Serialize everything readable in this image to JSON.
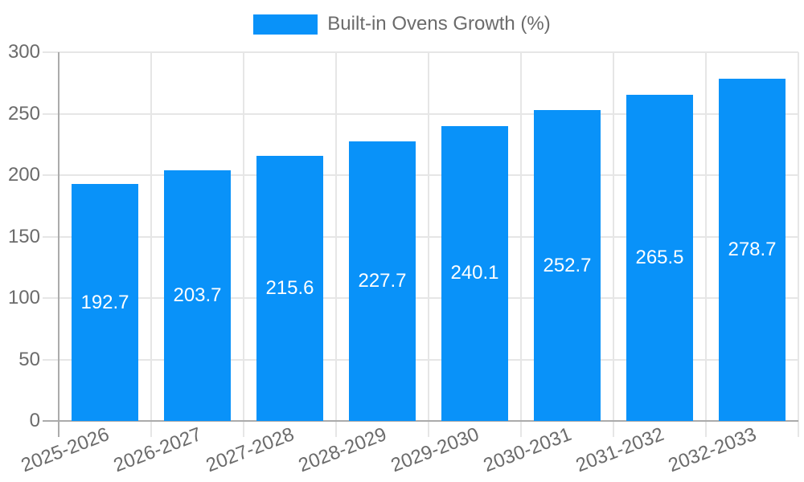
{
  "legend": {
    "label": "Built-in Ovens Growth (%)"
  },
  "chart_data": {
    "type": "bar",
    "title": "Built-in Ovens Growth (%)",
    "series_name": "Built-in Ovens Growth (%)",
    "categories": [
      "2025-2026",
      "2026-2027",
      "2027-2028",
      "2028-2029",
      "2029-2030",
      "2030-2031",
      "2031-2032",
      "2032-2033"
    ],
    "values": [
      192.7,
      203.7,
      215.6,
      227.7,
      240.1,
      252.7,
      265.5,
      278.7
    ],
    "value_labels": [
      "192.7",
      "203.7",
      "215.6",
      "227.7",
      "240.1",
      "252.7",
      "265.5",
      "278.7"
    ],
    "xlabel": "",
    "ylabel": "",
    "ylim": [
      0,
      300
    ],
    "yticks": [
      0,
      50,
      100,
      150,
      200,
      250,
      300
    ],
    "grid": true,
    "legend_position": "top",
    "value_labels_inside_bars": true,
    "x_tick_rotation_deg": -21,
    "colors": {
      "bar": "#0992f9",
      "grid": "#e6e6e6",
      "axis_zero_line": "#ababab",
      "tick_text": "#6b6b6b",
      "value_label": "#ffffff",
      "background": "#ffffff"
    }
  }
}
